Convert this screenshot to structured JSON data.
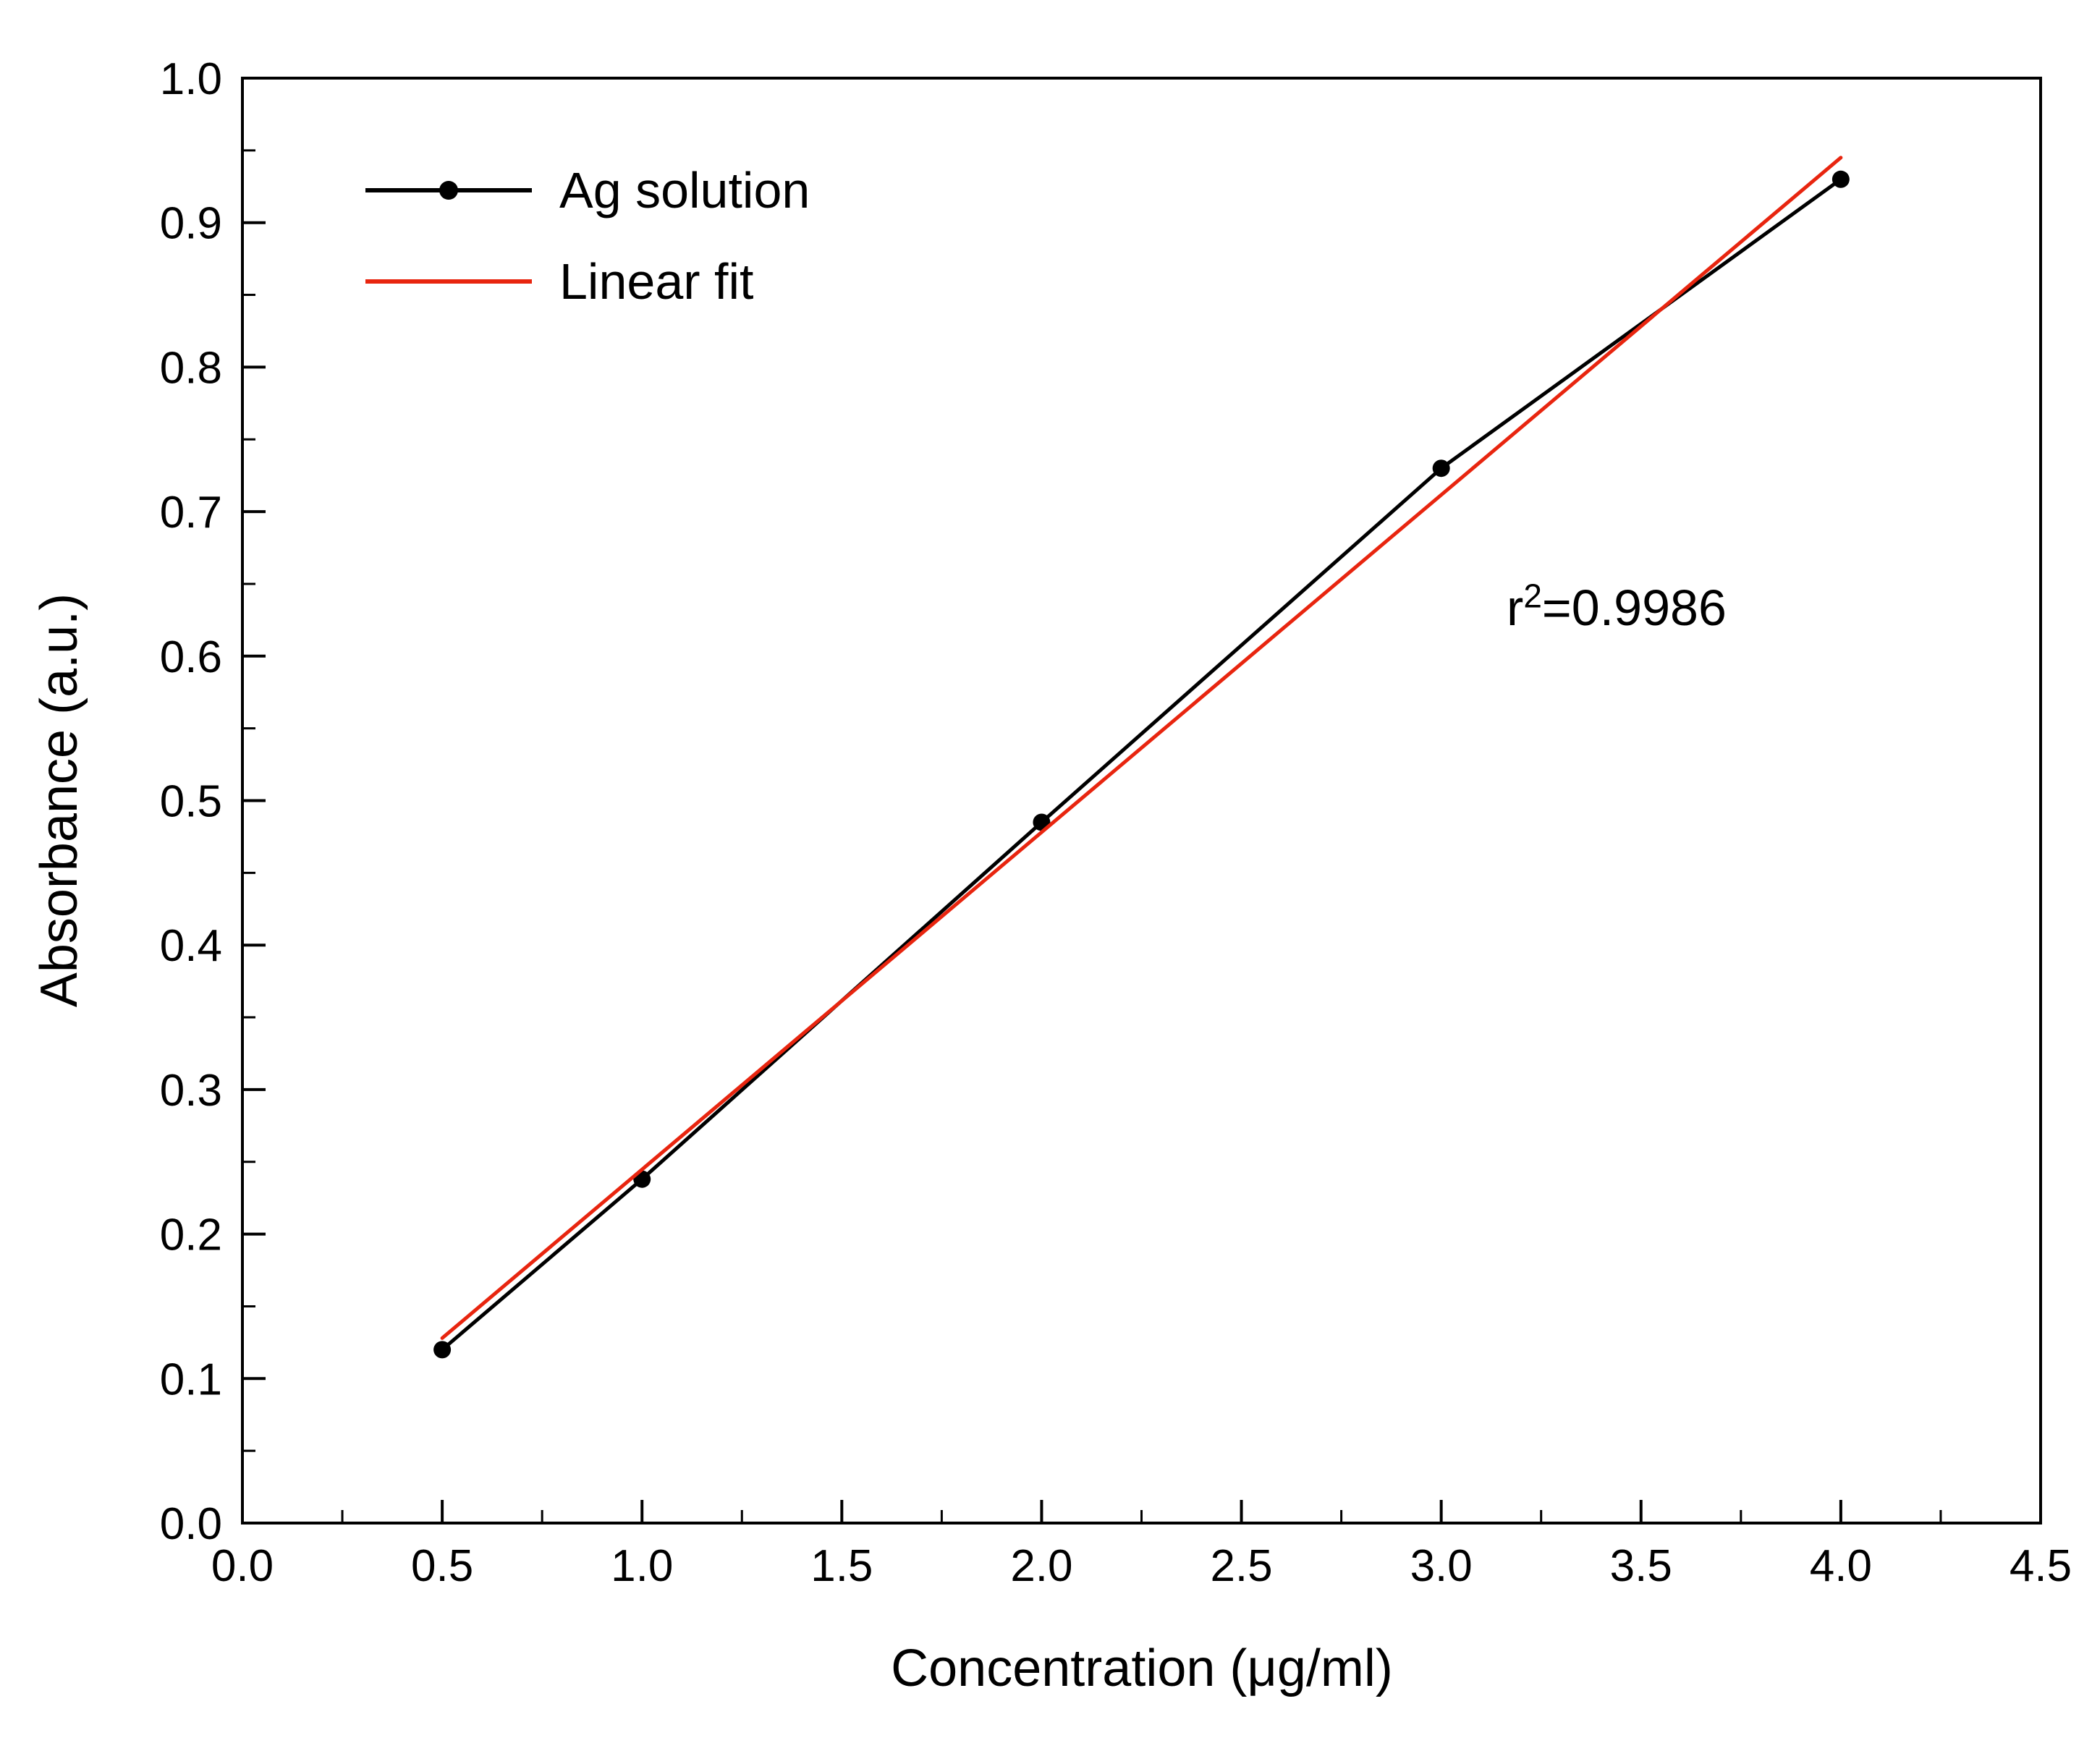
{
  "chart_data": {
    "type": "line",
    "title": "",
    "xlabel": "Concentration (μg/ml)",
    "ylabel": "Absorbance (a.u.)",
    "xlim": [
      0.0,
      4.5
    ],
    "ylim": [
      0.0,
      1.0
    ],
    "xticks": [
      0.0,
      0.5,
      1.0,
      1.5,
      2.0,
      2.5,
      3.0,
      3.5,
      4.0,
      4.5
    ],
    "xtick_labels": [
      "0.0",
      "0.5",
      "1.0",
      "1.5",
      "2.0",
      "2.5",
      "3.0",
      "3.5",
      "4.0",
      "4.5"
    ],
    "yticks": [
      0.0,
      0.1,
      0.2,
      0.3,
      0.4,
      0.5,
      0.6,
      0.7,
      0.8,
      0.9,
      1.0
    ],
    "ytick_labels": [
      "0.0",
      "0.1",
      "0.2",
      "0.3",
      "0.4",
      "0.5",
      "0.6",
      "0.7",
      "0.8",
      "0.9",
      "1.0"
    ],
    "grid": false,
    "legend_position": "top-left-inside",
    "series": [
      {
        "name": "Ag solution",
        "color": "#000000",
        "marker": "circle",
        "line_style": "solid",
        "x": [
          0.5,
          1.0,
          2.0,
          3.0,
          4.0
        ],
        "y": [
          0.12,
          0.238,
          0.485,
          0.73,
          0.93
        ]
      },
      {
        "name": "Linear fit",
        "color": "#e8250f",
        "marker": "none",
        "line_style": "solid",
        "x": [
          0.5,
          4.0
        ],
        "y": [
          0.128,
          0.945
        ]
      }
    ],
    "annotation": {
      "prefix": "r",
      "sup": "2",
      "suffix": "=0.9986"
    },
    "fit_r_squared": 0.9986
  },
  "colors": {
    "axis": "#000000",
    "background": "#ffffff",
    "series_ag": "#000000",
    "series_fit": "#e8250f"
  }
}
